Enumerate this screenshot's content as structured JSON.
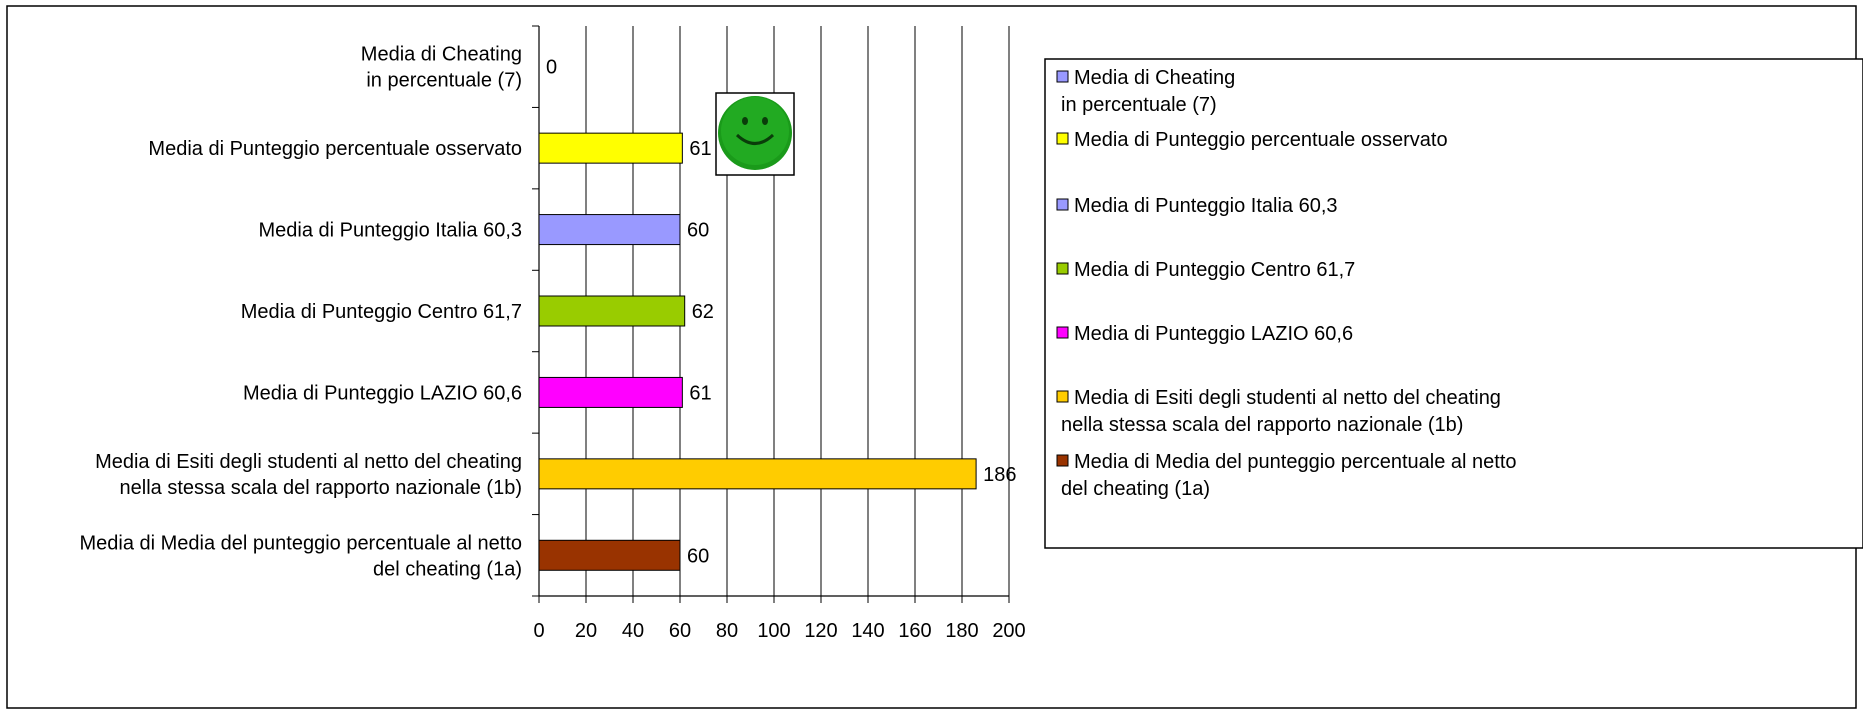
{
  "chart_data": {
    "type": "bar",
    "orientation": "horizontal",
    "categories": [
      [
        "Media di Cheating",
        "in percentuale (7)"
      ],
      [
        "Media di Punteggio percentuale osservato"
      ],
      [
        "Media di Punteggio Italia 60,3"
      ],
      [
        "Media di Punteggio Centro 61,7"
      ],
      [
        "Media di Punteggio LAZIO 60,6"
      ],
      [
        "Media di Esiti degli studenti al netto del cheating",
        "nella stessa scala del rapporto nazionale (1b)"
      ],
      [
        "Media di Media del punteggio percentuale al netto",
        "del cheating (1a)"
      ]
    ],
    "values": [
      0,
      61,
      60,
      62,
      61,
      186,
      60
    ],
    "data_labels": [
      "0",
      "61",
      "60",
      "62",
      "61",
      "186",
      "60"
    ],
    "colors": [
      "#9999ff",
      "#ffff00",
      "#9999ff",
      "#99cc00",
      "#ff00ff",
      "#ffcc00",
      "#993300"
    ],
    "xlim": [
      0,
      200
    ],
    "xticks": [
      "0",
      "20",
      "40",
      "60",
      "80",
      "100",
      "120",
      "140",
      "160",
      "180",
      "200"
    ],
    "grid": "vertical",
    "legend_position": "right",
    "legend": [
      [
        "Media di Cheating",
        "in percentuale (7)"
      ],
      [
        "Media di Punteggio percentuale osservato"
      ],
      [
        "Media di Punteggio Italia 60,3"
      ],
      [
        "Media di Punteggio Centro 61,7"
      ],
      [
        "Media di Punteggio LAZIO 60,6"
      ],
      [
        "Media di Esiti degli studenti al netto del cheating",
        "nella stessa scala del rapporto nazionale (1b)"
      ],
      [
        "Media di Media del punteggio percentuale al netto",
        "del cheating (1a)"
      ]
    ],
    "annotation_icon": "smiley-face-icon"
  }
}
